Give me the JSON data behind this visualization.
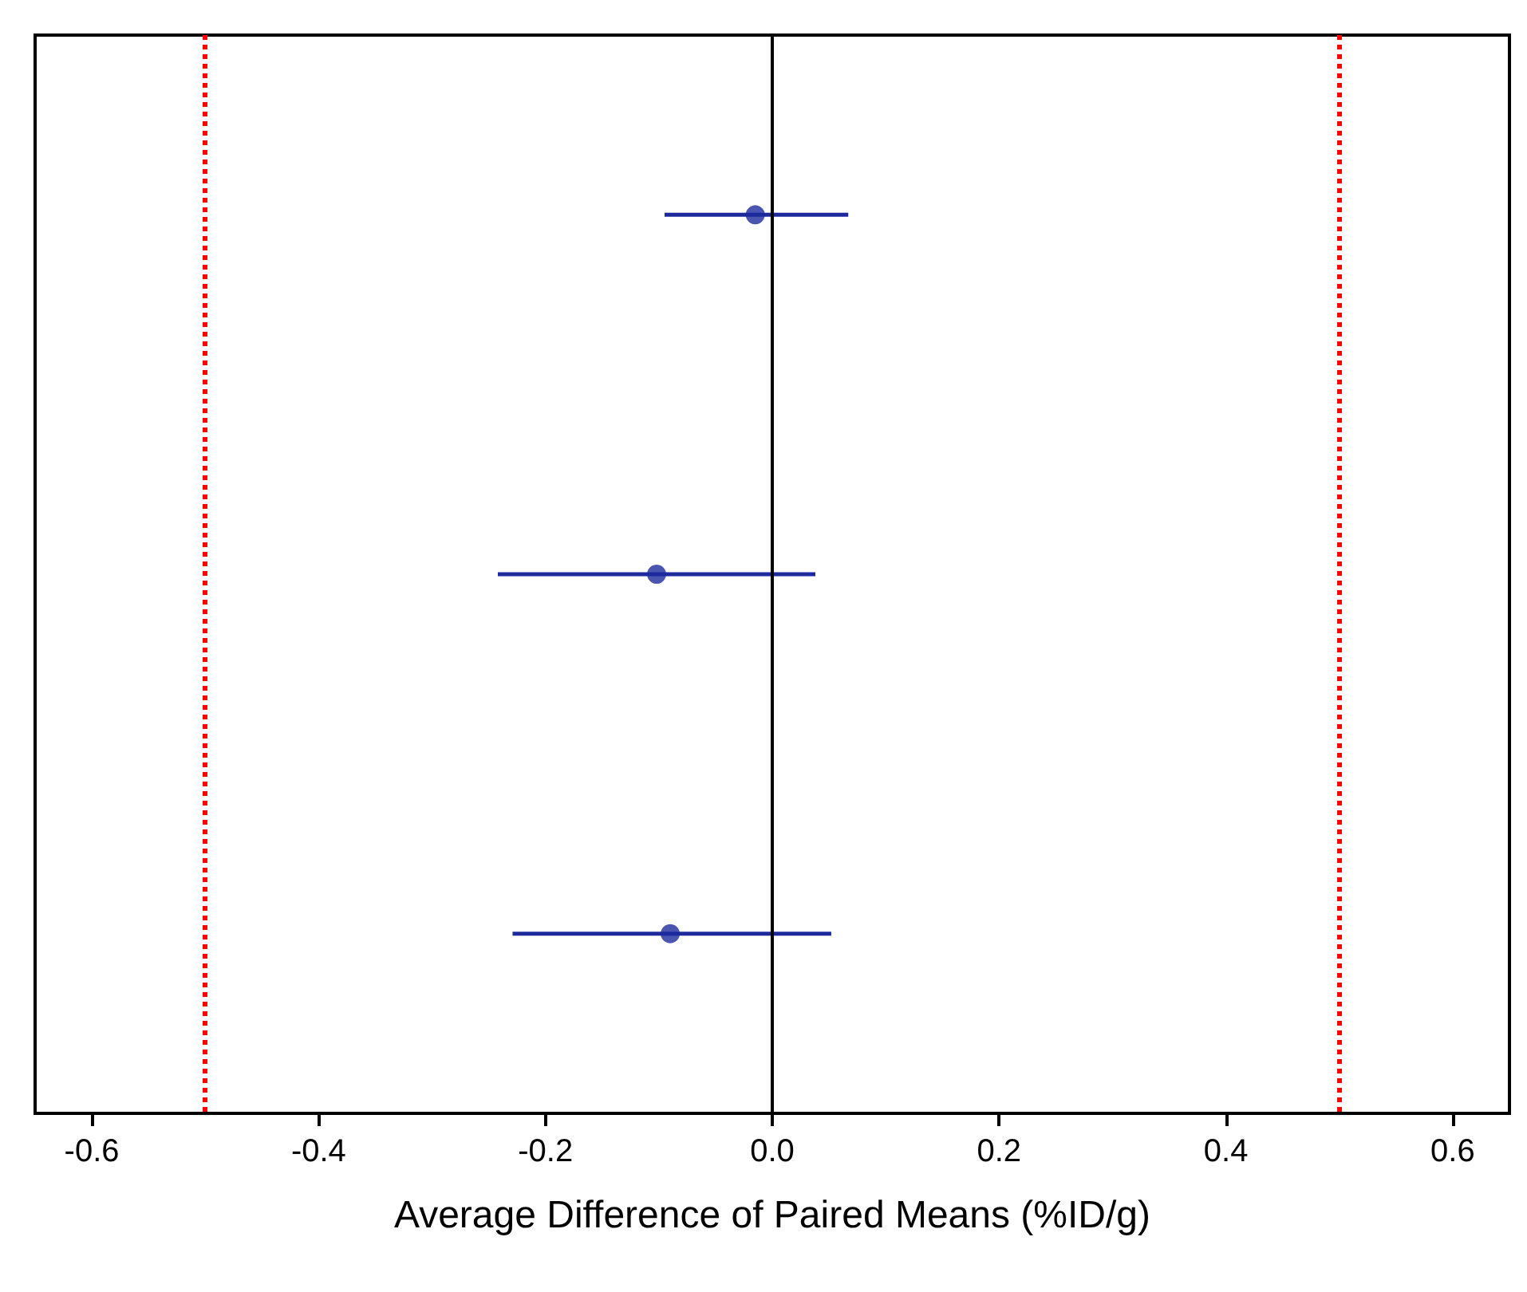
{
  "chart_data": {
    "type": "scatter",
    "orientation": "horizontal",
    "xlabel": "Average Difference of Paired Means (%ID/g)",
    "categories": [
      null,
      null,
      null
    ],
    "series": [
      {
        "color": "#1c2a9c",
        "values": [
          -0.015,
          -0.102,
          -0.09
        ],
        "errors": [
          [
            -0.095,
            0.067
          ],
          [
            -0.242,
            0.038
          ],
          [
            -0.229,
            0.052
          ]
        ]
      }
    ],
    "xlim": [
      -0.65,
      0.65
    ],
    "xticks": [
      -0.6,
      -0.4,
      -0.2,
      {
        "value": 0,
        "label": "0.0"
      },
      0.2,
      0.4,
      0.6
    ],
    "tick_labels": "x",
    "grid": false,
    "marker": "circle",
    "ref_lines": [
      {
        "axis": "x",
        "value": -0.5,
        "color": "#ff0000",
        "line_style": "dotted"
      },
      {
        "axis": "x",
        "value": 0.5,
        "color": "#ff0000",
        "line_style": "dotted"
      },
      {
        "axis": "x",
        "value": 0,
        "color": "#000000",
        "line_style": "solid"
      }
    ]
  }
}
